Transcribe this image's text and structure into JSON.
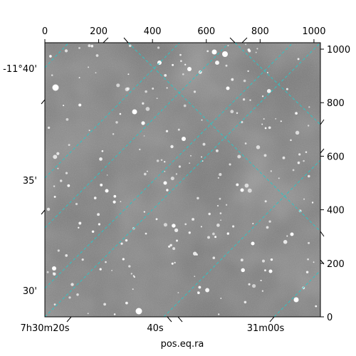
{
  "chart_data": {
    "type": "image",
    "xlabel": "pos.eq.ra",
    "pixel_x_ticks": [
      0,
      200,
      400,
      600,
      800,
      1000
    ],
    "pixel_y_ticks": [
      0,
      200,
      400,
      600,
      800,
      1000
    ],
    "pixel_xlim": [
      0,
      1024
    ],
    "pixel_ylim": [
      0,
      1024
    ],
    "ra_tick_labels": [
      "7h30m20s",
      "40s",
      "31m00s"
    ],
    "dec_tick_labels": [
      "-11°40'",
      "35'",
      "30'"
    ],
    "grid": true,
    "colors": {
      "grid": "#2ec4c4",
      "image_background": "#7a7a7a",
      "stars": "#ffffff"
    }
  }
}
